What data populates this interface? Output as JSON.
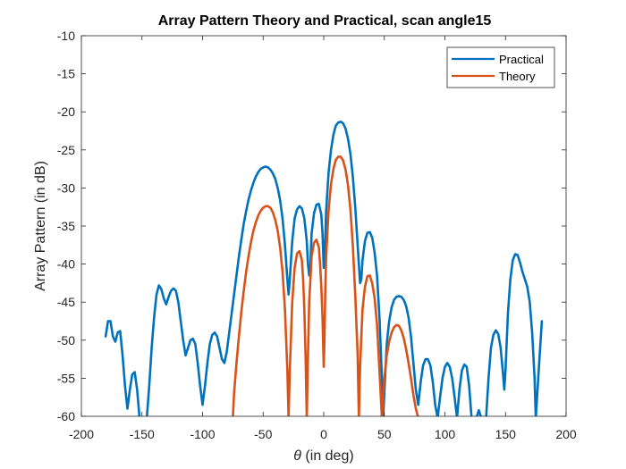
{
  "chart_data": {
    "type": "line",
    "title": "Array Pattern Theory and Practical, scan angle15",
    "xlabel_symbol": "θ",
    "xlabel_rest": " (in deg)",
    "ylabel": "Array Pattern (in dB)",
    "xlim": [
      -200,
      200
    ],
    "ylim": [
      -60,
      -10
    ],
    "xticks": [
      -200,
      -150,
      -100,
      -50,
      0,
      50,
      100,
      150,
      200
    ],
    "yticks": [
      -60,
      -55,
      -50,
      -45,
      -40,
      -35,
      -30,
      -25,
      -20,
      -15,
      -10
    ],
    "grid": false,
    "legend_position": "top-right",
    "series": [
      {
        "name": "Practical",
        "color": "#0072BD",
        "points": [
          [
            -180,
            -49.5
          ],
          [
            -178,
            -47.5
          ],
          [
            -176,
            -47.5
          ],
          [
            -174,
            -49.5
          ],
          [
            -172,
            -50.2
          ],
          [
            -170,
            -49
          ],
          [
            -168,
            -48.8
          ],
          [
            -166,
            -52
          ],
          [
            -164,
            -56
          ],
          [
            -162,
            -59
          ],
          [
            -160,
            -56.5
          ],
          [
            -158,
            -54.5
          ],
          [
            -156,
            -54.2
          ],
          [
            -154,
            -56.5
          ],
          [
            -152,
            -60.2
          ],
          [
            -146,
            -60.2
          ],
          [
            -144,
            -56
          ],
          [
            -142,
            -51
          ],
          [
            -140,
            -47
          ],
          [
            -138,
            -44
          ],
          [
            -136,
            -42.8
          ],
          [
            -134,
            -43.3
          ],
          [
            -132,
            -44.5
          ],
          [
            -130,
            -45.3
          ],
          [
            -128,
            -44.3
          ],
          [
            -126,
            -43.5
          ],
          [
            -124,
            -43.2
          ],
          [
            -122,
            -43.5
          ],
          [
            -120,
            -45
          ],
          [
            -118,
            -47.5
          ],
          [
            -116,
            -50
          ],
          [
            -114,
            -52
          ],
          [
            -112,
            -51
          ],
          [
            -110,
            -50
          ],
          [
            -108,
            -49.8
          ],
          [
            -106,
            -50.5
          ],
          [
            -104,
            -53
          ],
          [
            -102,
            -56
          ],
          [
            -100,
            -58.5
          ],
          [
            -98,
            -56
          ],
          [
            -96,
            -53
          ],
          [
            -94,
            -50.5
          ],
          [
            -92,
            -49.3
          ],
          [
            -90,
            -49
          ],
          [
            -88,
            -49.5
          ],
          [
            -86,
            -51
          ],
          [
            -84,
            -52.5
          ],
          [
            -82,
            -53
          ],
          [
            -80,
            -51.5
          ],
          [
            -78,
            -49
          ],
          [
            -76,
            -46.5
          ],
          [
            -74,
            -44
          ],
          [
            -72,
            -41.5
          ],
          [
            -70,
            -39
          ],
          [
            -68,
            -36.8
          ],
          [
            -66,
            -34.7
          ],
          [
            -64,
            -33
          ],
          [
            -62,
            -31.5
          ],
          [
            -60,
            -30.3
          ],
          [
            -58,
            -29.3
          ],
          [
            -56,
            -28.5
          ],
          [
            -54,
            -27.9
          ],
          [
            -52,
            -27.5
          ],
          [
            -50,
            -27.3
          ],
          [
            -48,
            -27.2
          ],
          [
            -46,
            -27.3
          ],
          [
            -44,
            -27.6
          ],
          [
            -42,
            -28.1
          ],
          [
            -40,
            -28.8
          ],
          [
            -38,
            -30
          ],
          [
            -36,
            -31.6
          ],
          [
            -34,
            -34
          ],
          [
            -32,
            -37.5
          ],
          [
            -30,
            -42
          ],
          [
            -29,
            -44
          ],
          [
            -28,
            -42
          ],
          [
            -26,
            -37
          ],
          [
            -24,
            -34
          ],
          [
            -22,
            -32.8
          ],
          [
            -20,
            -32.4
          ],
          [
            -18,
            -32.7
          ],
          [
            -16,
            -34
          ],
          [
            -14,
            -37
          ],
          [
            -13,
            -40
          ],
          [
            -12,
            -41.5
          ],
          [
            -11,
            -40
          ],
          [
            -10,
            -36
          ],
          [
            -8,
            -33.3
          ],
          [
            -6,
            -32.2
          ],
          [
            -4,
            -32.1
          ],
          [
            -2,
            -33.5
          ],
          [
            -1,
            -36
          ],
          [
            0,
            -40.5
          ],
          [
            1,
            -38
          ],
          [
            2,
            -33
          ],
          [
            4,
            -28
          ],
          [
            6,
            -25
          ],
          [
            8,
            -23
          ],
          [
            10,
            -21.8
          ],
          [
            12,
            -21.4
          ],
          [
            14,
            -21.3
          ],
          [
            16,
            -21.5
          ],
          [
            18,
            -22.2
          ],
          [
            20,
            -23.5
          ],
          [
            22,
            -25.5
          ],
          [
            24,
            -28.5
          ],
          [
            26,
            -32.5
          ],
          [
            28,
            -37.5
          ],
          [
            30,
            -42.5
          ],
          [
            31,
            -42
          ],
          [
            32,
            -39.5
          ],
          [
            34,
            -37
          ],
          [
            36,
            -35.9
          ],
          [
            38,
            -35.8
          ],
          [
            40,
            -36.5
          ],
          [
            42,
            -38.5
          ],
          [
            44,
            -41.5
          ],
          [
            46,
            -47
          ],
          [
            48,
            -55
          ],
          [
            49,
            -60.2
          ],
          [
            50,
            -57
          ],
          [
            52,
            -50.5
          ],
          [
            54,
            -47.5
          ],
          [
            56,
            -45.7
          ],
          [
            58,
            -44.7
          ],
          [
            60,
            -44.3
          ],
          [
            62,
            -44.2
          ],
          [
            64,
            -44.3
          ],
          [
            66,
            -44.7
          ],
          [
            68,
            -45.5
          ],
          [
            70,
            -47
          ],
          [
            72,
            -49.5
          ],
          [
            74,
            -53
          ],
          [
            76,
            -56.5
          ],
          [
            78,
            -58.5
          ],
          [
            80,
            -55.5
          ],
          [
            82,
            -53.3
          ],
          [
            84,
            -52.5
          ],
          [
            86,
            -52.5
          ],
          [
            88,
            -53.3
          ],
          [
            90,
            -55.5
          ],
          [
            92,
            -58.5
          ],
          [
            94,
            -60.2
          ],
          [
            96,
            -57.5
          ],
          [
            98,
            -55
          ],
          [
            100,
            -53.5
          ],
          [
            102,
            -53
          ],
          [
            104,
            -53.5
          ],
          [
            106,
            -55
          ],
          [
            108,
            -57.5
          ],
          [
            110,
            -60.2
          ],
          [
            112,
            -56.5
          ],
          [
            114,
            -54
          ],
          [
            116,
            -53.2
          ],
          [
            118,
            -53.5
          ],
          [
            120,
            -56
          ],
          [
            122,
            -60.2
          ],
          [
            126,
            -60.2
          ],
          [
            128,
            -59.2
          ],
          [
            130,
            -60.2
          ],
          [
            134,
            -60.2
          ],
          [
            136,
            -55
          ],
          [
            138,
            -51
          ],
          [
            140,
            -49.3
          ],
          [
            142,
            -48.7
          ],
          [
            144,
            -49.2
          ],
          [
            146,
            -51
          ],
          [
            148,
            -54.5
          ],
          [
            149,
            -56.5
          ],
          [
            150,
            -54
          ],
          [
            152,
            -46.5
          ],
          [
            154,
            -42
          ],
          [
            156,
            -39.5
          ],
          [
            158,
            -38.7
          ],
          [
            160,
            -38.8
          ],
          [
            162,
            -39.8
          ],
          [
            164,
            -41
          ],
          [
            166,
            -42
          ],
          [
            168,
            -43
          ],
          [
            170,
            -45
          ],
          [
            172,
            -49
          ],
          [
            174,
            -55
          ],
          [
            175,
            -60.2
          ],
          [
            177,
            -55
          ],
          [
            179,
            -50
          ],
          [
            180,
            -47.5
          ]
        ]
      },
      {
        "name": "Theory",
        "color": "#D95319",
        "points": [
          [
            -75,
            -60.2
          ],
          [
            -74,
            -57
          ],
          [
            -72,
            -53
          ],
          [
            -70,
            -49.5
          ],
          [
            -68,
            -46.3
          ],
          [
            -66,
            -43.5
          ],
          [
            -64,
            -41
          ],
          [
            -62,
            -38.9
          ],
          [
            -60,
            -37.1
          ],
          [
            -58,
            -35.6
          ],
          [
            -56,
            -34.5
          ],
          [
            -54,
            -33.6
          ],
          [
            -52,
            -33
          ],
          [
            -50,
            -32.6
          ],
          [
            -48,
            -32.4
          ],
          [
            -46,
            -32.4
          ],
          [
            -44,
            -32.6
          ],
          [
            -42,
            -33.2
          ],
          [
            -40,
            -34.2
          ],
          [
            -38,
            -35.6
          ],
          [
            -36,
            -37.8
          ],
          [
            -34,
            -41
          ],
          [
            -32,
            -46
          ],
          [
            -30,
            -54
          ],
          [
            -29,
            -60.2
          ],
          [
            -28,
            -54
          ],
          [
            -26,
            -45
          ],
          [
            -24,
            -40.5
          ],
          [
            -22,
            -38.6
          ],
          [
            -20,
            -38.3
          ],
          [
            -18,
            -39.5
          ],
          [
            -17,
            -42
          ],
          [
            -16,
            -46
          ],
          [
            -15,
            -52
          ],
          [
            -14,
            -60.2
          ],
          [
            -13,
            -52
          ],
          [
            -12,
            -45
          ],
          [
            -10,
            -39
          ],
          [
            -8,
            -37.2
          ],
          [
            -6,
            -36.8
          ],
          [
            -4,
            -37.8
          ],
          [
            -3,
            -40
          ],
          [
            -2,
            -43
          ],
          [
            -1,
            -47
          ],
          [
            0,
            -53.5
          ],
          [
            0.6,
            -50
          ],
          [
            1.2,
            -44
          ],
          [
            2,
            -39
          ],
          [
            4,
            -33
          ],
          [
            6,
            -29.5
          ],
          [
            8,
            -27.5
          ],
          [
            10,
            -26.3
          ],
          [
            12,
            -25.9
          ],
          [
            14,
            -25.9
          ],
          [
            16,
            -26.4
          ],
          [
            18,
            -27.6
          ],
          [
            20,
            -29.6
          ],
          [
            22,
            -32.8
          ],
          [
            24,
            -37.5
          ],
          [
            26,
            -44
          ],
          [
            28,
            -52
          ],
          [
            29,
            -60.2
          ],
          [
            30,
            -53.5
          ],
          [
            32,
            -46
          ],
          [
            34,
            -43
          ],
          [
            36,
            -41.6
          ],
          [
            38,
            -41.5
          ],
          [
            40,
            -42.5
          ],
          [
            42,
            -44.5
          ],
          [
            44,
            -48
          ],
          [
            46,
            -54
          ],
          [
            48,
            -60.2
          ],
          [
            50,
            -55
          ],
          [
            52,
            -52
          ],
          [
            54,
            -50.2
          ],
          [
            56,
            -49
          ],
          [
            58,
            -48.3
          ],
          [
            60,
            -48
          ],
          [
            62,
            -48.1
          ],
          [
            64,
            -48.7
          ],
          [
            66,
            -49.7
          ],
          [
            68,
            -51.2
          ],
          [
            70,
            -53
          ],
          [
            72,
            -55
          ],
          [
            74,
            -57.2
          ],
          [
            76,
            -59
          ],
          [
            78,
            -60.2
          ]
        ]
      }
    ]
  }
}
